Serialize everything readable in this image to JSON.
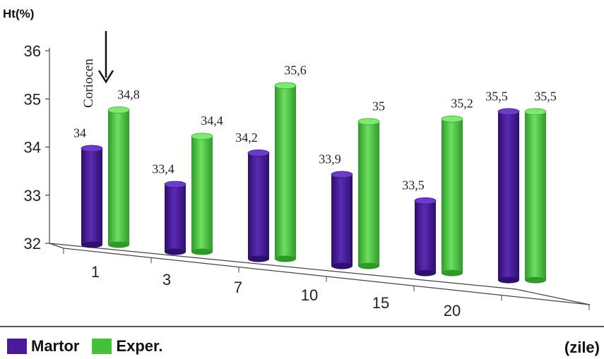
{
  "chart_data": {
    "type": "bar",
    "ylabel": "Ht(%)",
    "xunit": "(zile)",
    "ylim": [
      32,
      36
    ],
    "yticks": [
      "32",
      "33",
      "34",
      "35",
      "36"
    ],
    "categories": [
      "1",
      "3",
      "7",
      "10",
      "15",
      "20"
    ],
    "series": [
      {
        "name": "Martor",
        "color": "#4B1A9C",
        "values": [
          34,
          33.4,
          34.2,
          33.9,
          33.5,
          35.5
        ],
        "labels": [
          "34",
          "33,4",
          "34,2",
          "33,9",
          "33,5",
          "35,5"
        ]
      },
      {
        "name": "Exper.",
        "color": "#44C23C",
        "values": [
          34.8,
          34.4,
          35.6,
          35,
          35.2,
          35.5
        ],
        "labels": [
          "34,8",
          "34,4",
          "35,6",
          "35",
          "35,2",
          "35,5"
        ]
      }
    ],
    "annotation": "Coriocen"
  }
}
